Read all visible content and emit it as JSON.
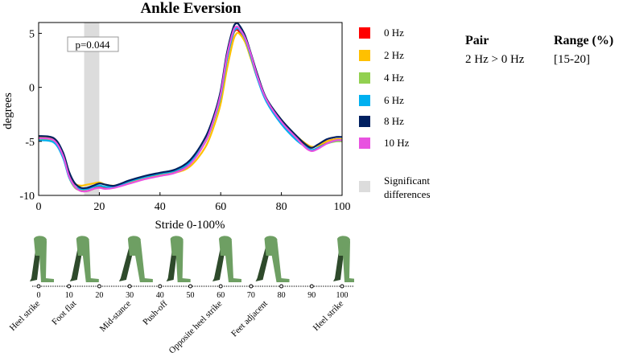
{
  "chart_data": {
    "type": "line",
    "title": "Ankle Eversion",
    "xlabel": "Stride 0-100%",
    "ylabel": "degrees",
    "xlim": [
      0,
      100
    ],
    "ylim": [
      -10,
      6
    ],
    "xticks": [
      0,
      20,
      40,
      60,
      80,
      100
    ],
    "yticks": [
      5,
      0,
      -5,
      -10
    ],
    "significance": {
      "range": [
        15,
        20
      ],
      "annotation": "p=0.044",
      "legend_label": "Significant differences"
    },
    "x": [
      0,
      5,
      8,
      10,
      12,
      14,
      16,
      18,
      20,
      22,
      25,
      30,
      35,
      40,
      45,
      50,
      55,
      58,
      60,
      62,
      64,
      65,
      66,
      68,
      70,
      72,
      75,
      80,
      85,
      88,
      90,
      92,
      95,
      98,
      100
    ],
    "series": [
      {
        "name": "0 Hz",
        "color": "#ff0000",
        "values": [
          -4.6,
          -4.8,
          -6.3,
          -8.2,
          -9.2,
          -9.6,
          -9.6,
          -9.4,
          -9.2,
          -9.3,
          -9.2,
          -8.8,
          -8.4,
          -8.1,
          -7.8,
          -7.0,
          -5.0,
          -2.8,
          -0.8,
          2.5,
          4.8,
          5.3,
          5.2,
          4.3,
          2.8,
          1.0,
          -1.2,
          -3.1,
          -4.6,
          -5.4,
          -5.8,
          -5.6,
          -5.0,
          -4.8,
          -4.8
        ]
      },
      {
        "name": "2 Hz",
        "color": "#ffc000",
        "values": [
          -4.6,
          -4.8,
          -6.1,
          -7.9,
          -8.9,
          -9.1,
          -9.0,
          -8.9,
          -8.8,
          -9.0,
          -9.1,
          -8.8,
          -8.4,
          -8.1,
          -7.9,
          -7.3,
          -5.5,
          -3.4,
          -1.5,
          1.6,
          4.2,
          4.9,
          5.0,
          4.2,
          2.6,
          0.9,
          -1.1,
          -3.0,
          -4.5,
          -5.2,
          -5.5,
          -5.4,
          -5.0,
          -4.8,
          -4.8
        ]
      },
      {
        "name": "4 Hz",
        "color": "#92d050",
        "values": [
          -4.8,
          -5.0,
          -6.4,
          -8.3,
          -9.3,
          -9.5,
          -9.4,
          -9.2,
          -9.1,
          -9.2,
          -9.2,
          -8.7,
          -8.3,
          -8.0,
          -7.7,
          -6.9,
          -5.0,
          -2.8,
          -0.8,
          2.5,
          4.9,
          5.4,
          5.4,
          4.5,
          2.9,
          1.0,
          -1.2,
          -3.3,
          -4.8,
          -5.5,
          -5.8,
          -5.6,
          -5.2,
          -5.0,
          -5.0
        ]
      },
      {
        "name": "6 Hz",
        "color": "#00b0f0",
        "values": [
          -4.9,
          -5.1,
          -6.5,
          -8.3,
          -9.2,
          -9.4,
          -9.4,
          -9.2,
          -9.1,
          -9.2,
          -9.2,
          -8.7,
          -8.3,
          -8.0,
          -7.7,
          -6.9,
          -5.0,
          -2.8,
          -0.8,
          2.5,
          4.9,
          5.4,
          5.4,
          4.5,
          2.8,
          0.9,
          -1.3,
          -3.4,
          -4.9,
          -5.5,
          -5.8,
          -5.6,
          -5.2,
          -4.9,
          -4.9
        ]
      },
      {
        "name": "8 Hz",
        "color": "#002060",
        "values": [
          -4.5,
          -4.7,
          -6.0,
          -7.8,
          -8.9,
          -9.3,
          -9.3,
          -9.1,
          -8.9,
          -9.0,
          -9.1,
          -8.6,
          -8.2,
          -7.9,
          -7.6,
          -6.7,
          -4.6,
          -2.4,
          -0.3,
          3.1,
          5.4,
          5.9,
          5.8,
          4.8,
          3.1,
          1.3,
          -1.0,
          -3.0,
          -4.5,
          -5.3,
          -5.6,
          -5.3,
          -4.8,
          -4.6,
          -4.6
        ]
      },
      {
        "name": "10 Hz",
        "color": "#e852e0",
        "values": [
          -4.7,
          -4.9,
          -6.3,
          -8.2,
          -9.2,
          -9.6,
          -9.6,
          -9.4,
          -9.3,
          -9.4,
          -9.3,
          -8.9,
          -8.5,
          -8.2,
          -7.9,
          -7.1,
          -5.0,
          -2.7,
          -0.6,
          2.8,
          5.1,
          5.6,
          5.5,
          4.6,
          3.0,
          1.1,
          -1.1,
          -3.2,
          -4.7,
          -5.6,
          -5.9,
          -5.7,
          -5.2,
          -4.9,
          -4.9
        ]
      }
    ],
    "gait_phase_axis": {
      "ticks": [
        0,
        10,
        20,
        30,
        40,
        50,
        60,
        70,
        80,
        90,
        100
      ],
      "events": [
        {
          "label": "Heel strike",
          "at": 0
        },
        {
          "label": "Foot flat",
          "at": 12
        },
        {
          "label": "Mid-stance",
          "at": 30
        },
        {
          "label": "Push-off",
          "at": 42
        },
        {
          "label": "Opposite heel strike",
          "at": 60
        },
        {
          "label": "Feet adjacent",
          "at": 75
        },
        {
          "label": "Heel strike",
          "at": 100
        }
      ],
      "figure_positions": [
        0,
        14,
        31,
        45,
        61,
        76,
        100
      ]
    }
  },
  "table": {
    "headers": [
      "Pair",
      "Range (%)"
    ],
    "rows": [
      [
        "2 Hz > 0 Hz",
        "[15-20]"
      ]
    ]
  },
  "colors": {
    "figure_light": "#6e9f63",
    "figure_dark": "#2e4a2b",
    "sig_band": "#dcdcdc"
  }
}
